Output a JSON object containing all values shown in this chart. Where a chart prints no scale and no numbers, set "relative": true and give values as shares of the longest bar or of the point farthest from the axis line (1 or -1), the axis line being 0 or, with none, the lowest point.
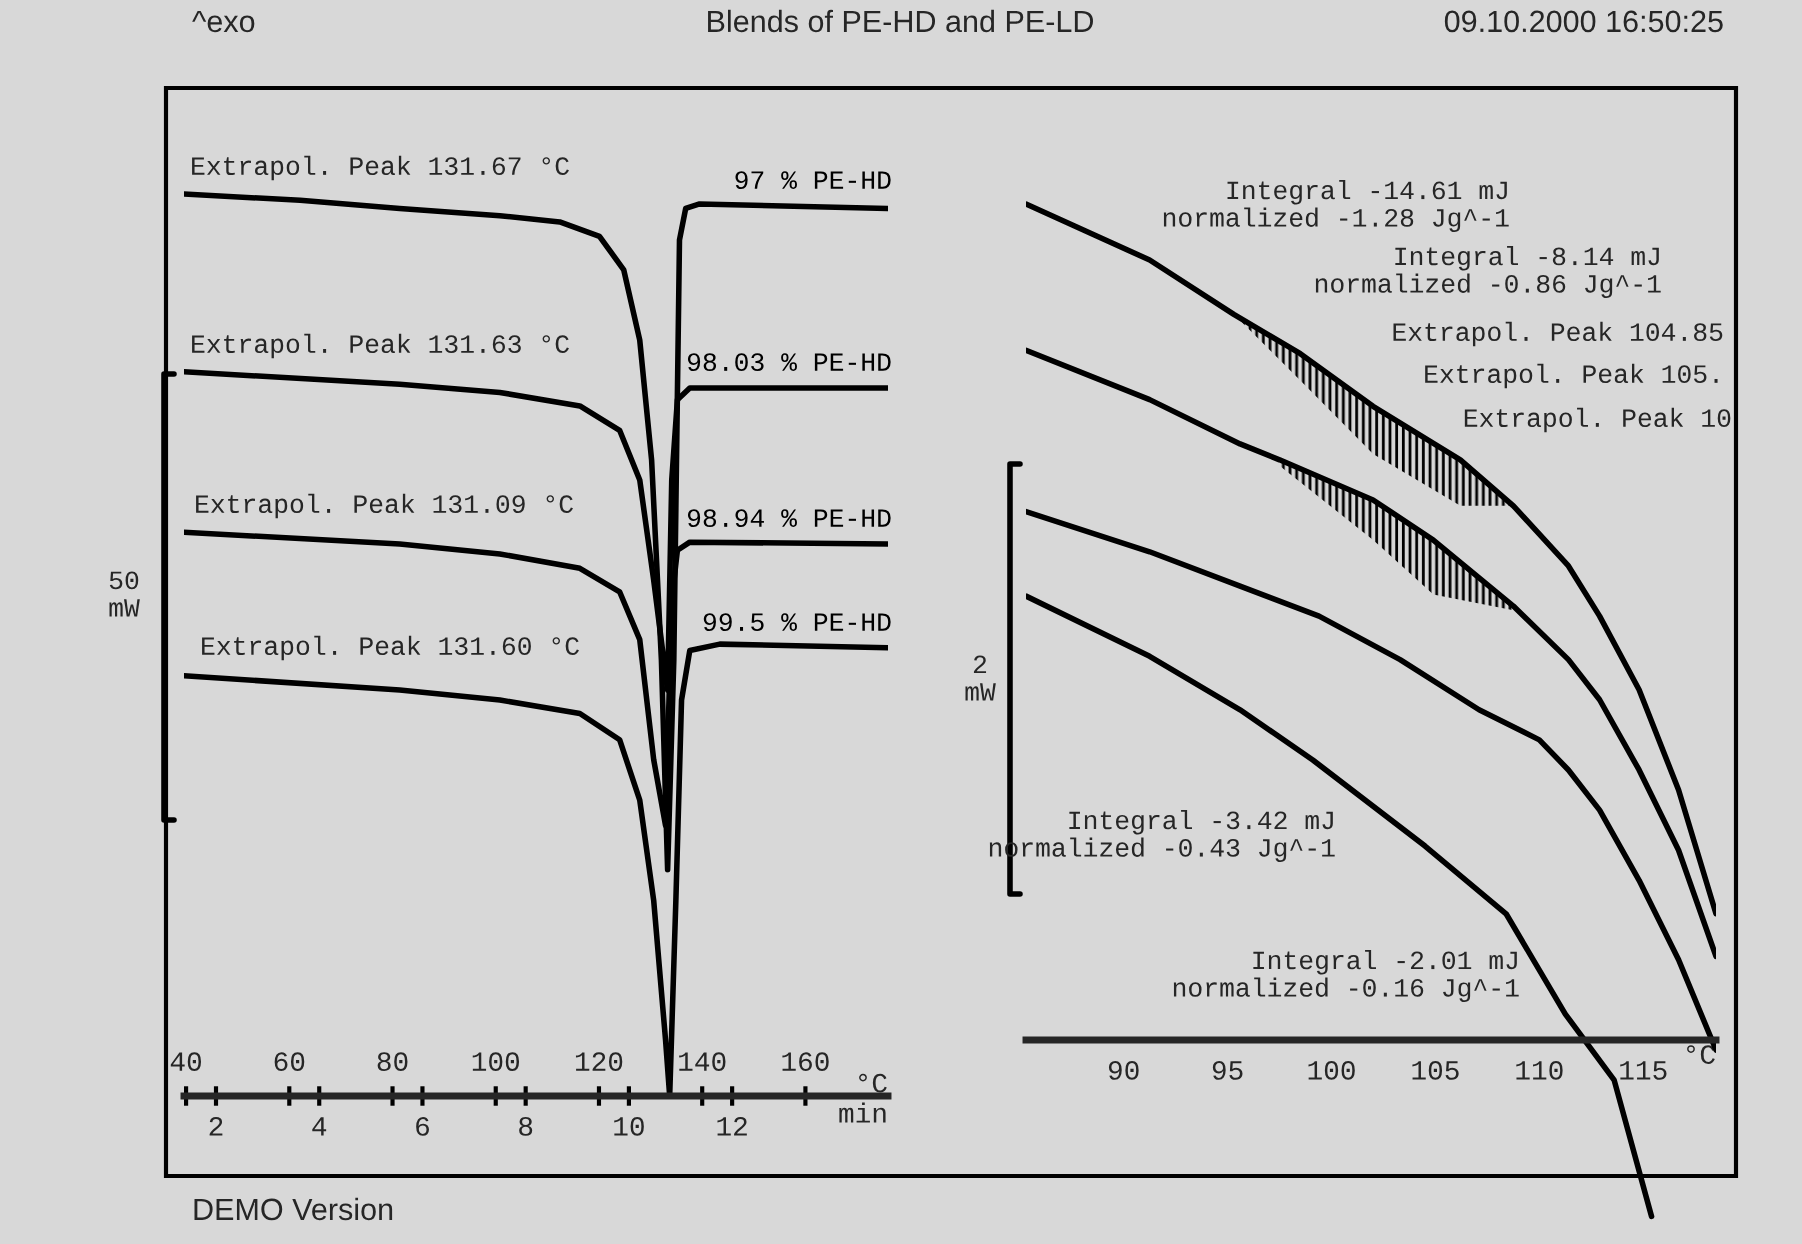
{
  "chart_data": [
    {
      "type": "line",
      "title": "Blends of PE-HD and PE-LD",
      "relative": true,
      "annotations": [
        "^exo",
        "09.10.2000 16:50:25",
        "DEMO Version",
        "Extrapol. Peak 131.67 °C",
        "Extrapol. Peak 131.63 °C",
        "Extrapol. Peak 131.09 °C",
        "Extrapol. Peak 131.60 °C",
        "50\nmW"
      ],
      "xlim": [
        39.6,
        176
      ],
      "xticks": [
        40,
        60,
        80,
        100,
        120,
        140,
        160
      ],
      "xlabel": "°C",
      "x2lim": [
        1.38,
        15.02
      ],
      "x2ticks": [
        2,
        4,
        6,
        8,
        10,
        12
      ],
      "x2label": "min",
      "series": [
        {
          "name": "97 % PE-HD",
          "color": "#000000",
          "x": [
            39.6,
            62.1,
            81.4,
            100.8,
            112.4,
            120.1,
            124.8,
            127.9,
            130.2,
            132.1,
            133.3,
            134.5,
            135.6,
            136.8,
            139.5,
            175.9
          ],
          "values": [
            1.0,
            0.993,
            0.984,
            0.976,
            0.969,
            0.953,
            0.916,
            0.838,
            0.705,
            0.483,
            0.251,
            0.483,
            0.949,
            0.984,
            0.989,
            0.984
          ]
        },
        {
          "name": "98.03 % PE-HD",
          "color": "#000000",
          "x": [
            39.6,
            81.4,
            100.8,
            116.3,
            124.0,
            127.9,
            130.6,
            133.3,
            134.1,
            135.2,
            137.6,
            175.9
          ],
          "values": [
            0.803,
            0.789,
            0.78,
            0.765,
            0.738,
            0.683,
            0.572,
            0.45,
            0.683,
            0.772,
            0.785,
            0.785
          ]
        },
        {
          "name": "98.94 % PE-HD",
          "color": "#000000",
          "x": [
            39.6,
            81.4,
            100.8,
            116.3,
            124.0,
            127.9,
            130.6,
            132.9,
            134.1,
            135.2,
            137.6,
            175.9
          ],
          "values": [
            0.625,
            0.612,
            0.601,
            0.585,
            0.559,
            0.506,
            0.373,
            0.3,
            0.55,
            0.605,
            0.614,
            0.612
          ]
        },
        {
          "name": "99.5 % PE-HD",
          "color": "#000000",
          "x": [
            39.6,
            81.4,
            100.8,
            116.3,
            124.0,
            127.9,
            130.6,
            132.9,
            133.7,
            134.9,
            136.0,
            137.6,
            143.4,
            175.9
          ],
          "values": [
            0.466,
            0.45,
            0.439,
            0.424,
            0.395,
            0.328,
            0.217,
            0.062,
            0.0,
            0.217,
            0.439,
            0.494,
            0.501,
            0.497
          ]
        }
      ]
    },
    {
      "type": "line",
      "relative": true,
      "annotations": [
        "Integral -14.61 mJ\nnormalized -1.28 Jg^-1",
        "Integral -8.14 mJ\nnormalized -0.86 Jg^-1",
        "Extrapol. Peak 104.85",
        "Extrapol. Peak 105.",
        "Extrapol. Peak 10",
        "Integral -3.42 mJ\nnormalized -0.43 Jg^-1",
        "Integral -2.01 mJ\nnormalized -0.16 Jg^-1",
        "2\nmW"
      ],
      "xlim": [
        85.3,
        118.5
      ],
      "xticks": [
        90,
        95,
        100,
        105,
        110,
        115
      ],
      "xlabel": "°C",
      "series": [
        {
          "color": "#000000",
          "x": [
            85.3,
            91.25,
            95.3,
            98.5,
            102.0,
            106.2,
            108.75,
            111.4,
            112.9,
            114.8,
            116.7,
            118.5
          ],
          "values": [
            1.0,
            0.933,
            0.868,
            0.821,
            0.758,
            0.694,
            0.639,
            0.567,
            0.507,
            0.419,
            0.299,
            0.151
          ],
          "lower": [
            null,
            null,
            0.868,
            0.789,
            0.701,
            0.639,
            0.639,
            null,
            null,
            null,
            null,
            null
          ],
          "upper": [
            null,
            null,
            0.868,
            0.821,
            0.758,
            0.694,
            0.639,
            null,
            null,
            null,
            null,
            null
          ]
        },
        {
          "color": "#000000",
          "x": [
            85.3,
            91.25,
            95.6,
            97.5,
            102.0,
            104.9,
            108.75,
            111.4,
            112.9,
            114.8,
            116.7,
            118.5
          ],
          "values": [
            0.825,
            0.766,
            0.713,
            0.694,
            0.646,
            0.598,
            0.519,
            0.455,
            0.407,
            0.323,
            0.227,
            0.1
          ],
          "lower": [
            null,
            null,
            null,
            0.687,
            0.598,
            0.533,
            0.514,
            null,
            null,
            null,
            null,
            null
          ],
          "upper": [
            null,
            null,
            null,
            0.694,
            0.646,
            0.598,
            0.519,
            null,
            null,
            null,
            null,
            null
          ]
        },
        {
          "color": "#000000",
          "x": [
            85.3,
            91.25,
            95.6,
            99.4,
            103.3,
            107.1,
            110.0,
            111.4,
            112.9,
            114.8,
            116.7,
            118.5
          ],
          "values": [
            0.632,
            0.584,
            0.543,
            0.507,
            0.455,
            0.395,
            0.359,
            0.323,
            0.275,
            0.191,
            0.096,
            -0.012
          ]
        },
        {
          "color": "#000000",
          "x": [
            85.3,
            91.25,
            95.6,
            99.1,
            104.5,
            108.4,
            111.25,
            113.6,
            115.4
          ],
          "values": [
            0.531,
            0.459,
            0.395,
            0.335,
            0.232,
            0.151,
            0.031,
            -0.048,
            -0.211
          ]
        }
      ]
    }
  ]
}
